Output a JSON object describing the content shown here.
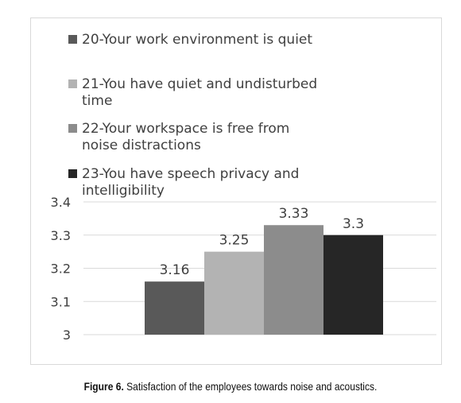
{
  "chart_data": {
    "type": "bar",
    "categories": [
      "20-Your work environment is quiet",
      "21-You have quiet and undisturbed time",
      "22-Your workspace is free from noise distractions",
      "23-You have speech privacy and intelligibility"
    ],
    "legend": [
      [
        "20-Your work environment is quiet"
      ],
      [
        "21-You have quiet and undisturbed",
        "time"
      ],
      [
        "22-Your workspace is free from",
        "noise distractions"
      ],
      [
        "23-You have speech privacy and",
        "intelligibility"
      ]
    ],
    "values": [
      3.16,
      3.25,
      3.33,
      3.3
    ],
    "value_labels": [
      "3.16",
      "3.25",
      "3.33",
      "3.3"
    ],
    "colors": [
      "#595959",
      "#b3b3b3",
      "#8c8c8c",
      "#262626"
    ],
    "yticks": [
      "3",
      "3.1",
      "3.2",
      "3.3",
      "3.4"
    ],
    "ylim": [
      3,
      3.4
    ],
    "grid": true,
    "legend_position": "top"
  },
  "caption": {
    "label": "Figure 6.",
    "text": " Satisfaction of the employees towards noise and acoustics."
  }
}
